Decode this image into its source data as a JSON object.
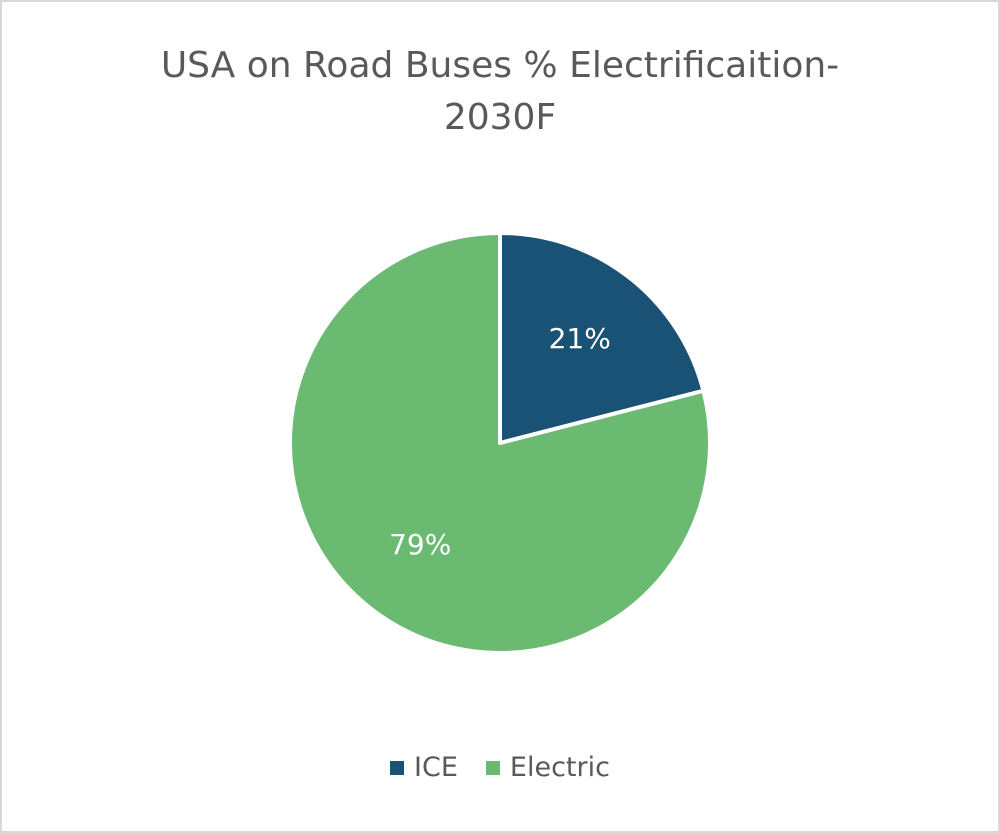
{
  "chart_data": {
    "type": "pie",
    "title": "USA on Road Buses % Electrificaition- 2030F",
    "title_lines": [
      "USA on Road Buses % Electrificaition-",
      "2030F"
    ],
    "slices": [
      {
        "label": "ICE",
        "value": 21,
        "display": "21%",
        "color": "#1a5276"
      },
      {
        "label": "Electric",
        "value": 79,
        "display": "79%",
        "color": "#6aba72"
      }
    ],
    "legend_position": "bottom"
  }
}
